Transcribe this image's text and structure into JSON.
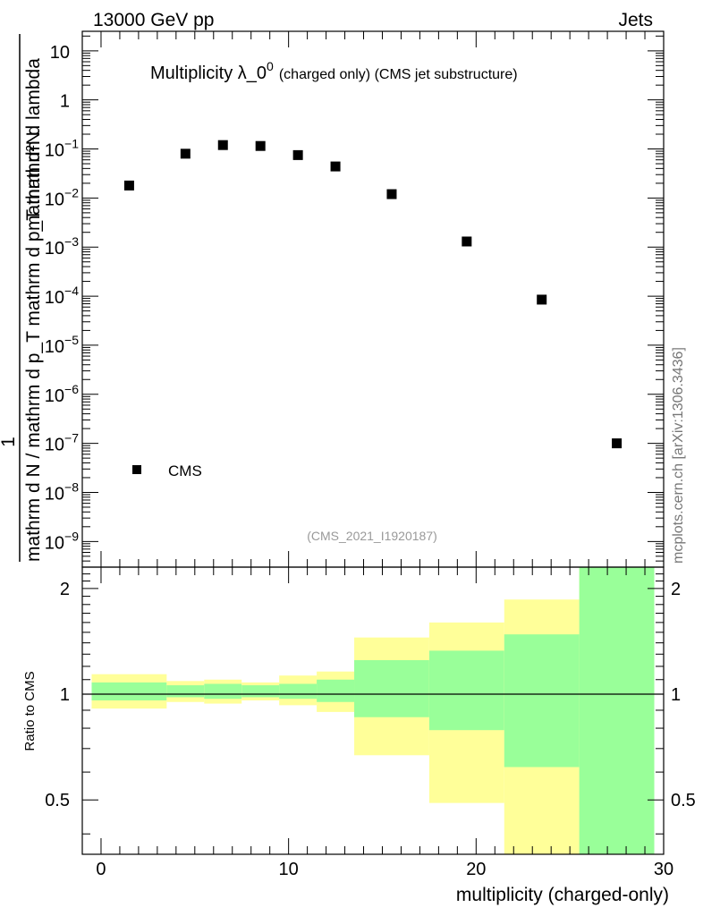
{
  "header": {
    "left": "13000 GeV pp",
    "right": "Jets"
  },
  "plot_title": {
    "main": "Multiplicity λ_0",
    "sup": "0",
    "small": "(charged only) (CMS jet substructure)"
  },
  "side_label": "mcplots.cern.ch [arXiv:1306.3436]",
  "analysis_id": "(CMS_2021_I1920187)",
  "chart_data": [
    {
      "type": "scatter",
      "title": "Multiplicity λ_0^0 (charged only) (CMS jet substructure)",
      "ylabel": {
        "numerator": "mathrm d²N",
        "line1": "1",
        "line2": "mathrm d N / mathrm d p_T mathrm d p_T mathrm d lambda"
      },
      "xlabel": "",
      "yscale": "log",
      "ylim": [
        3e-10,
        25
      ],
      "xlim": [
        -1,
        30
      ],
      "y_ticks": [
        {
          "v": 10,
          "label": "10",
          "exp": ""
        },
        {
          "v": 1,
          "label": "1",
          "exp": ""
        },
        {
          "v": 0.1,
          "label": "10",
          "exp": "−1"
        },
        {
          "v": 0.01,
          "label": "10",
          "exp": "−2"
        },
        {
          "v": 0.001,
          "label": "10",
          "exp": "−3"
        },
        {
          "v": 0.0001,
          "label": "10",
          "exp": "−4"
        },
        {
          "v": 1e-05,
          "label": "10",
          "exp": "−5"
        },
        {
          "v": 1e-06,
          "label": "10",
          "exp": "−6"
        },
        {
          "v": 1e-07,
          "label": "10",
          "exp": "−7"
        },
        {
          "v": 1e-08,
          "label": "10",
          "exp": "−8"
        },
        {
          "v": 1e-09,
          "label": "10",
          "exp": "−9"
        }
      ],
      "legend": {
        "label": "CMS",
        "placement": "bottom-left"
      },
      "series": [
        {
          "name": "CMS",
          "marker": "square",
          "color": "#000000",
          "x": [
            1.5,
            4.5,
            6.5,
            8.5,
            10.5,
            12.5,
            15.5,
            19.5,
            23.5,
            27.5
          ],
          "y": [
            0.018,
            0.08,
            0.12,
            0.115,
            0.075,
            0.044,
            0.012,
            0.0013,
            8.5e-05,
            1e-07
          ]
        }
      ]
    },
    {
      "type": "area",
      "ylabel": "Ratio to CMS",
      "xlabel": "multiplicity (charged-only)",
      "xlim": [
        -1,
        30
      ],
      "ylim": [
        0.35,
        2.3
      ],
      "x_ticks": [
        0,
        10,
        20,
        30
      ],
      "y_ticks": [
        0.5,
        1,
        2
      ],
      "reference_line": 1,
      "bands": {
        "bins": [
          [
            -0.5,
            3.5
          ],
          [
            3.5,
            5.5
          ],
          [
            5.5,
            7.5
          ],
          [
            7.5,
            9.5
          ],
          [
            9.5,
            11.5
          ],
          [
            11.5,
            13.5
          ],
          [
            13.5,
            17.5
          ],
          [
            17.5,
            21.5
          ],
          [
            21.5,
            25.5
          ],
          [
            25.5,
            29.5
          ]
        ],
        "yellow_color": "#ffff99",
        "green_color": "#99ff99",
        "yellow_low": [
          0.91,
          0.95,
          0.94,
          0.96,
          0.93,
          0.89,
          0.67,
          0.49,
          0.35,
          0.35
        ],
        "yellow_high": [
          1.14,
          1.09,
          1.1,
          1.08,
          1.13,
          1.16,
          1.45,
          1.6,
          1.86,
          2.3
        ],
        "green_low": [
          0.96,
          0.98,
          0.97,
          0.98,
          0.97,
          0.95,
          0.86,
          0.79,
          0.62,
          0.35
        ],
        "green_high": [
          1.08,
          1.06,
          1.07,
          1.06,
          1.07,
          1.1,
          1.25,
          1.33,
          1.48,
          2.3
        ]
      }
    }
  ]
}
